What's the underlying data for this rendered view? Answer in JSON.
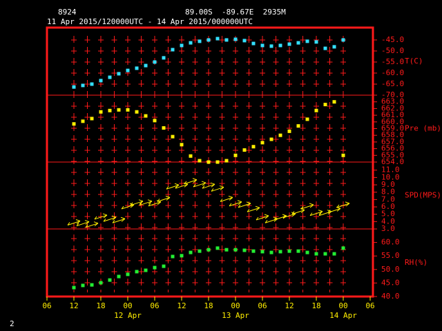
{
  "header": {
    "station": "8924",
    "location": "89.00S  -89.67E  2935M",
    "time_range": "11 Apr 2015/120000UTC - 14 Apr 2015/000000UTC",
    "page": "2"
  },
  "chart_data": [
    {
      "type": "scatter",
      "ylabel": "T(C)",
      "color": "#33e0ff",
      "x": [
        6,
        8,
        10,
        12,
        14,
        16,
        18,
        20,
        22,
        24,
        26,
        28,
        30,
        32,
        34,
        36,
        38,
        40,
        42,
        44,
        46,
        48,
        50,
        52,
        54,
        56,
        58,
        60,
        62,
        64,
        66
      ],
      "values": [
        -66.3,
        -65.6,
        -65,
        -63.4,
        -61.9,
        -60.3,
        -58.8,
        -57.8,
        -56.6,
        -55,
        -53.1,
        -49.4,
        -47.5,
        -46.3,
        -45.6,
        -45,
        -44.4,
        -45,
        -44.7,
        -45.3,
        -46.6,
        -47.5,
        -47.8,
        -47.5,
        -46.9,
        -46.3,
        -45.6,
        -45.9,
        -48.8,
        -48.1,
        -45
      ],
      "ylim": [
        -70,
        -39.4
      ],
      "yticks": [
        {
          "value": -45,
          "label": "-45.0"
        },
        {
          "value": -50,
          "label": "-50.0"
        },
        {
          "value": -55,
          "label": "-55.0"
        },
        {
          "value": -60,
          "label": "-60.0"
        },
        {
          "value": -65,
          "label": "-65.0"
        },
        {
          "value": -70,
          "label": "-70.0"
        }
      ]
    },
    {
      "type": "scatter",
      "ylabel": "Pre (mb)",
      "color": "#ffee00",
      "x": [
        6,
        8,
        10,
        12,
        14,
        16,
        18,
        20,
        22,
        24,
        26,
        28,
        30,
        32,
        34,
        36,
        38,
        40,
        42,
        44,
        46,
        48,
        50,
        52,
        54,
        56,
        58,
        60,
        62,
        64,
        66
      ],
      "values": [
        659.7,
        660.1,
        660.5,
        661.5,
        661.7,
        661.8,
        661.8,
        661.5,
        660.9,
        660.2,
        659.1,
        657.8,
        656.6,
        654.9,
        654.2,
        654.0,
        654.0,
        654.2,
        655.0,
        655.8,
        656.3,
        656.9,
        657.4,
        658.0,
        658.6,
        659.4,
        660.4,
        661.7,
        662.6,
        663.0,
        655.0
      ],
      "ylim": [
        654,
        664
      ],
      "yticks": [
        {
          "value": 663,
          "label": "663.0"
        },
        {
          "value": 662,
          "label": "662.0"
        },
        {
          "value": 661,
          "label": "661.0"
        },
        {
          "value": 660,
          "label": "660.0"
        },
        {
          "value": 659,
          "label": "659.0"
        },
        {
          "value": 658,
          "label": "658.0"
        },
        {
          "value": 657,
          "label": "657.0"
        },
        {
          "value": 656,
          "label": "656.0"
        },
        {
          "value": 655,
          "label": "655.0"
        },
        {
          "value": 654,
          "label": "654.0"
        }
      ]
    },
    {
      "type": "wind",
      "ylabel": "SPD(MPS)",
      "color": "#ffee00",
      "x": [
        6,
        8,
        10,
        12,
        14,
        16,
        18,
        20,
        22,
        24,
        26,
        28,
        30,
        32,
        34,
        36,
        38,
        40,
        42,
        44,
        46,
        48,
        50,
        52,
        54,
        56,
        58,
        60,
        62,
        64,
        66
      ],
      "values": [
        3.8,
        3.7,
        3.5,
        4.6,
        4.3,
        4.1,
        6.0,
        6.5,
        6.5,
        6.4,
        7.0,
        8.7,
        8.8,
        9.4,
        9.0,
        8.8,
        8.4,
        7.0,
        6.4,
        6.2,
        5.6,
        4.5,
        4.1,
        4.5,
        4.8,
        5.3,
        6.0,
        5.1,
        5.1,
        5.5,
        6.2
      ],
      "ylim": [
        3,
        12.1
      ],
      "yticks": [
        {
          "value": 11,
          "label": "11.0"
        },
        {
          "value": 10,
          "label": "10.0"
        },
        {
          "value": 9,
          "label": "9.0"
        },
        {
          "value": 8,
          "label": "8.0"
        },
        {
          "value": 7,
          "label": "7.0"
        },
        {
          "value": 6,
          "label": "6.0"
        },
        {
          "value": 5,
          "label": "5.0"
        },
        {
          "value": 4,
          "label": "4.0"
        },
        {
          "value": 3,
          "label": "3.0"
        }
      ]
    },
    {
      "type": "scatter",
      "ylabel": "RH(%)",
      "color": "#22ee33",
      "x": [
        6,
        8,
        10,
        12,
        14,
        16,
        18,
        20,
        22,
        24,
        26,
        28,
        30,
        32,
        34,
        36,
        38,
        40,
        42,
        44,
        46,
        48,
        50,
        52,
        54,
        56,
        58,
        60,
        62,
        64,
        66
      ],
      "values": [
        43.3,
        44.1,
        44.3,
        45.1,
        46.1,
        47.4,
        48.2,
        49.2,
        49.7,
        50.7,
        51.2,
        54.8,
        55.1,
        56.3,
        56.8,
        57.3,
        57.9,
        57.3,
        57.3,
        57.1,
        56.8,
        56.6,
        56.3,
        56.6,
        56.8,
        56.8,
        56.3,
        55.8,
        55.8,
        55.8,
        57.9
      ],
      "ylim": [
        40,
        65
      ],
      "yticks": [
        {
          "value": 60,
          "label": "60.0"
        },
        {
          "value": 55,
          "label": "55.0"
        },
        {
          "value": 50,
          "label": "50.0"
        },
        {
          "value": 45,
          "label": "45.0"
        },
        {
          "value": 40,
          "label": "40.0"
        }
      ],
      "xlim": [
        0,
        72
      ],
      "xticks": [
        {
          "value": 0,
          "label": "06"
        },
        {
          "value": 6,
          "label": "12"
        },
        {
          "value": 12,
          "label": "18"
        },
        {
          "value": 18,
          "label": "00"
        },
        {
          "value": 24,
          "label": "06"
        },
        {
          "value": 30,
          "label": "12"
        },
        {
          "value": 36,
          "label": "18"
        },
        {
          "value": 42,
          "label": "00"
        },
        {
          "value": 48,
          "label": "06"
        },
        {
          "value": 54,
          "label": "12"
        },
        {
          "value": 60,
          "label": "18"
        },
        {
          "value": 66,
          "label": "00"
        },
        {
          "value": 72,
          "label": "06"
        }
      ],
      "x_dates": [
        {
          "value": 18,
          "label": "12 Apr"
        },
        {
          "value": 42,
          "label": "13 Apr"
        },
        {
          "value": 66,
          "label": "14 Apr"
        }
      ]
    }
  ]
}
